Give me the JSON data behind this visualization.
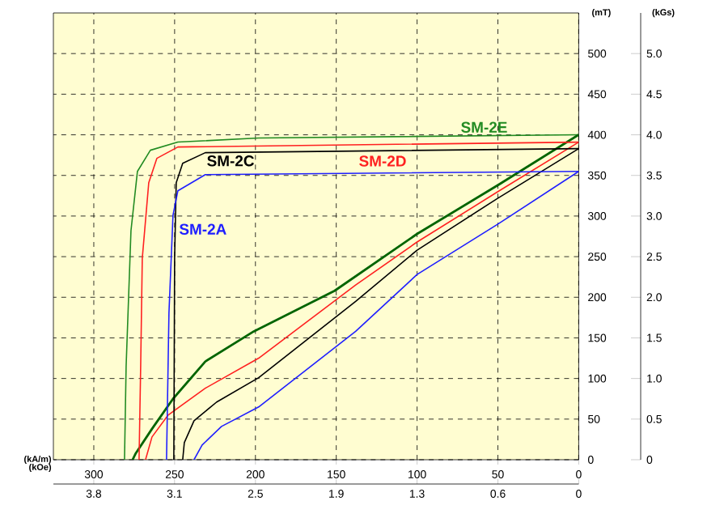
{
  "chart_data": {
    "type": "line",
    "xlabel": "(kA/m)",
    "x2label": "(kOe)",
    "ylabel": "(mT)",
    "y2label": "(kGs)",
    "xlim": [
      325,
      0
    ],
    "xticks": [
      300,
      250,
      200,
      150,
      100,
      50,
      0
    ],
    "x2lim": [
      4.084,
      0
    ],
    "x2ticks": [
      {
        "value": 3.77,
        "label": "3.8"
      },
      {
        "value": 3.142,
        "label": "3.1"
      },
      {
        "value": 2.513,
        "label": "2.5"
      },
      {
        "value": 1.885,
        "label": "1.9"
      },
      {
        "value": 1.257,
        "label": "1.3"
      },
      {
        "value": 0.628,
        "label": "0.6"
      },
      0
    ],
    "ylim": [
      0,
      550
    ],
    "yticks": [
      0,
      50,
      100,
      150,
      200,
      250,
      300,
      350,
      400,
      450,
      500
    ],
    "y2lim": [
      0,
      5.5
    ],
    "y2ticks": [
      0,
      {
        "value": 0.5,
        "label": "0.5"
      },
      {
        "value": 1,
        "label": "1.0"
      },
      {
        "value": 1.5,
        "label": "1.5"
      },
      {
        "value": 2,
        "label": "2.0"
      },
      {
        "value": 2.5,
        "label": "2.5"
      },
      {
        "value": 3,
        "label": "3.0"
      },
      {
        "value": 3.5,
        "label": "3.5"
      },
      {
        "value": 4,
        "label": "4.0"
      },
      {
        "value": 4.5,
        "label": "4.5"
      },
      {
        "value": 5,
        "label": "5.0"
      }
    ],
    "grid": true,
    "legend": false,
    "line_style": "solid",
    "marker": "none",
    "series": [
      {
        "name": "SM-2E",
        "color": "#228b22",
        "x": [
          0,
          198,
          248,
          265,
          273,
          277,
          280,
          281
        ],
        "values": [
          400,
          396,
          391,
          381,
          355,
          282,
          115,
          0
        ]
      },
      {
        "color": "#006400",
        "x": [
          0,
          50,
          100,
          151,
          201,
          231,
          251,
          264,
          274,
          276
        ],
        "values": [
          400,
          338,
          278,
          208,
          158,
          121,
          75,
          38,
          8,
          0
        ]
      },
      {
        "name": "SM-2D",
        "color": "#ff2020",
        "x": [
          0,
          248,
          261,
          266,
          270,
          271,
          272
        ],
        "values": [
          391,
          385,
          371,
          341,
          248,
          115,
          0
        ]
      },
      {
        "color": "#ff2020",
        "x": [
          0,
          50,
          100,
          138,
          198,
          231,
          254,
          264,
          268
        ],
        "values": [
          391,
          330,
          268,
          215,
          125,
          88,
          55,
          28,
          0
        ]
      },
      {
        "name": "SM-2C",
        "color": "#000000",
        "x": [
          0,
          231,
          245,
          249,
          250,
          250.5
        ],
        "values": [
          383,
          378,
          365,
          341,
          248,
          0
        ]
      },
      {
        "color": "#000000",
        "x": [
          0,
          50,
          100,
          138,
          198,
          224,
          238,
          244,
          245
        ],
        "values": [
          383,
          322,
          258,
          195,
          101,
          71,
          48,
          21,
          0
        ]
      },
      {
        "name": "SM-2A",
        "color": "#1f1fff",
        "x": [
          0,
          231,
          248,
          251,
          253.5,
          255
        ],
        "values": [
          355,
          351,
          331,
          301,
          181,
          0
        ]
      },
      {
        "color": "#1f1fff",
        "x": [
          0,
          50,
          100,
          138,
          198,
          221,
          233,
          238
        ],
        "values": [
          355,
          290,
          228,
          158,
          65,
          41,
          18,
          0
        ]
      }
    ]
  }
}
